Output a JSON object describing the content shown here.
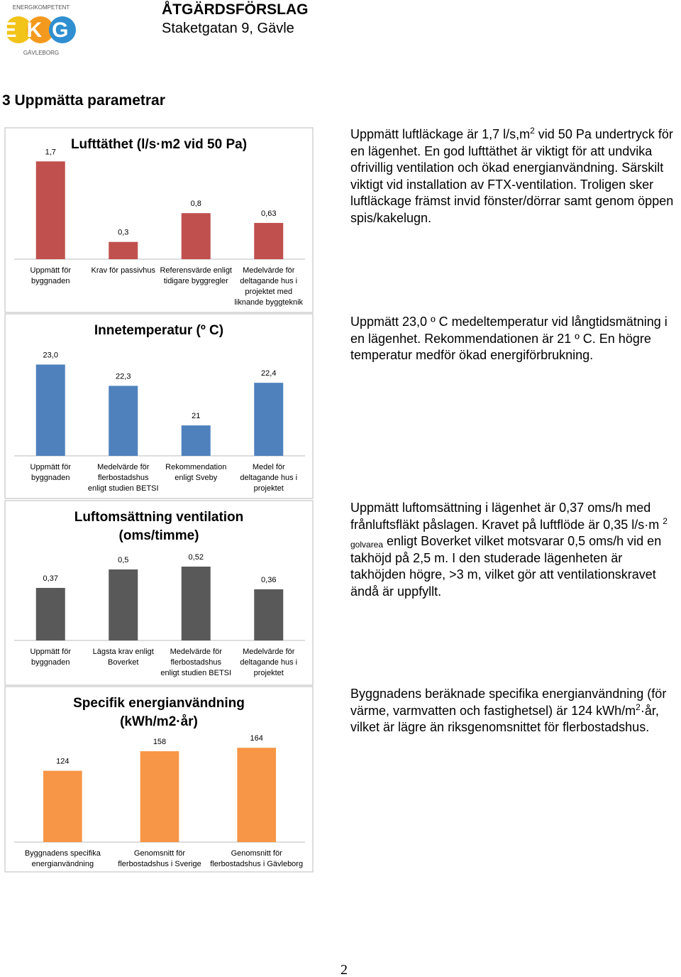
{
  "header": {
    "logo_top": "ENERGIKOMPETENT",
    "logo_letters": "EKG",
    "logo_bottom": "GÄVLEBORG",
    "title": "ÅTGÄRDSFÖRSLAG",
    "subtitle": "Staketgatan 9, Gävle"
  },
  "section_title": "3 Uppmätta parametrar",
  "descriptions": [
    [
      "Uppmätt luftläckage är 1,7 l/s,m",
      "2",
      " vid 50 Pa undertryck för en lägenhet. En god lufttäthet är viktigt för att undvika ofrivillig ventilation och ökad energianvändning. Särskilt viktigt vid installation av FTX-ventilation. Troligen sker luftläckage främst invid fönster/dörrar samt genom öppen spis/kakelugn."
    ],
    [
      "Uppmätt 23,0 º C medeltemperatur vid långtidsmätning i en lägenhet. Rekommendationen är 21 º C. En högre temperatur medför ökad energiförbrukning."
    ],
    [
      "Uppmätt luftomsättning i lägenhet är 0,37 oms/h med frånluftsfläkt påslagen. Kravet på luftflöde är 0,35 l/s·m ",
      "2",
      " golvarea",
      " enligt Boverket vilket motsvarar 0,5 oms/h vid en takhöjd på 2,5 m. I den studerade lägenheten är takhöjden högre, >3 m, vilket gör att ventilationskravet ändå är uppfyllt."
    ],
    [
      "Byggnadens beräknade specifika energianvändning (för värme, varmvatten och fastighetsel) är 124 kWh/m",
      "2",
      "·år, vilket är lägre än riksgenomsnittet för flerbostadshus."
    ]
  ],
  "page_number": "2",
  "chart_data": [
    {
      "type": "bar",
      "title": "Lufttäthet (l/s·m2 vid 50 Pa)",
      "categories": [
        "Uppmätt för\nbyggnaden",
        "Krav för passivhus",
        "Referensvärde enligt\ntidigare byggregler",
        "Medelvärde för\ndeltagande hus i\nprojektet med\nliknande byggteknik"
      ],
      "values": [
        1.7,
        0.3,
        0.8,
        0.63
      ],
      "value_labels": [
        "1,7",
        "0,3",
        "0,8",
        "0,63"
      ],
      "color": "#c0504d",
      "ylim": [
        0,
        2
      ]
    },
    {
      "type": "bar",
      "title": "Innetemperatur (º C)",
      "categories": [
        "Uppmätt för\nbyggnaden",
        "Medelvärde för\nflerbostadshus\nenligt studien BETSI",
        "Rekommendation\nenligt Sveby",
        "Medel för\ndeltagande hus i\nprojektet"
      ],
      "values": [
        23.0,
        22.3,
        21,
        22.4
      ],
      "value_labels": [
        "23,0",
        "22,3",
        "21",
        "22,4"
      ],
      "color": "#4f81bd",
      "ylim": [
        20,
        23.5
      ]
    },
    {
      "type": "bar",
      "title": "Luftomsättning ventilation\n(oms/timme)",
      "categories": [
        "Uppmätt för\nbyggnaden",
        "Lägsta krav enligt\nBoverket",
        "Medelvärde för\nflerbostadshus\nenligt studien BETSI",
        "Medelvärde för\ndeltagande hus i\nprojektet"
      ],
      "values": [
        0.37,
        0.5,
        0.52,
        0.36
      ],
      "value_labels": [
        "0,37",
        "0,5",
        "0,52",
        "0,36"
      ],
      "color": "#595959",
      "ylim": [
        0,
        0.6
      ]
    },
    {
      "type": "bar",
      "title": "Specifik energianvändning\n(kWh/m2·år)",
      "categories": [
        "Byggnadens specifika\nenergianvändning",
        "Genomsnitt för\nflerbostadshus i Sverige",
        "Genomsnitt för\nflerbostadshus i Gävleborg"
      ],
      "values": [
        124,
        158,
        164
      ],
      "color": "#f79646",
      "ylim": [
        0,
        200
      ]
    }
  ]
}
